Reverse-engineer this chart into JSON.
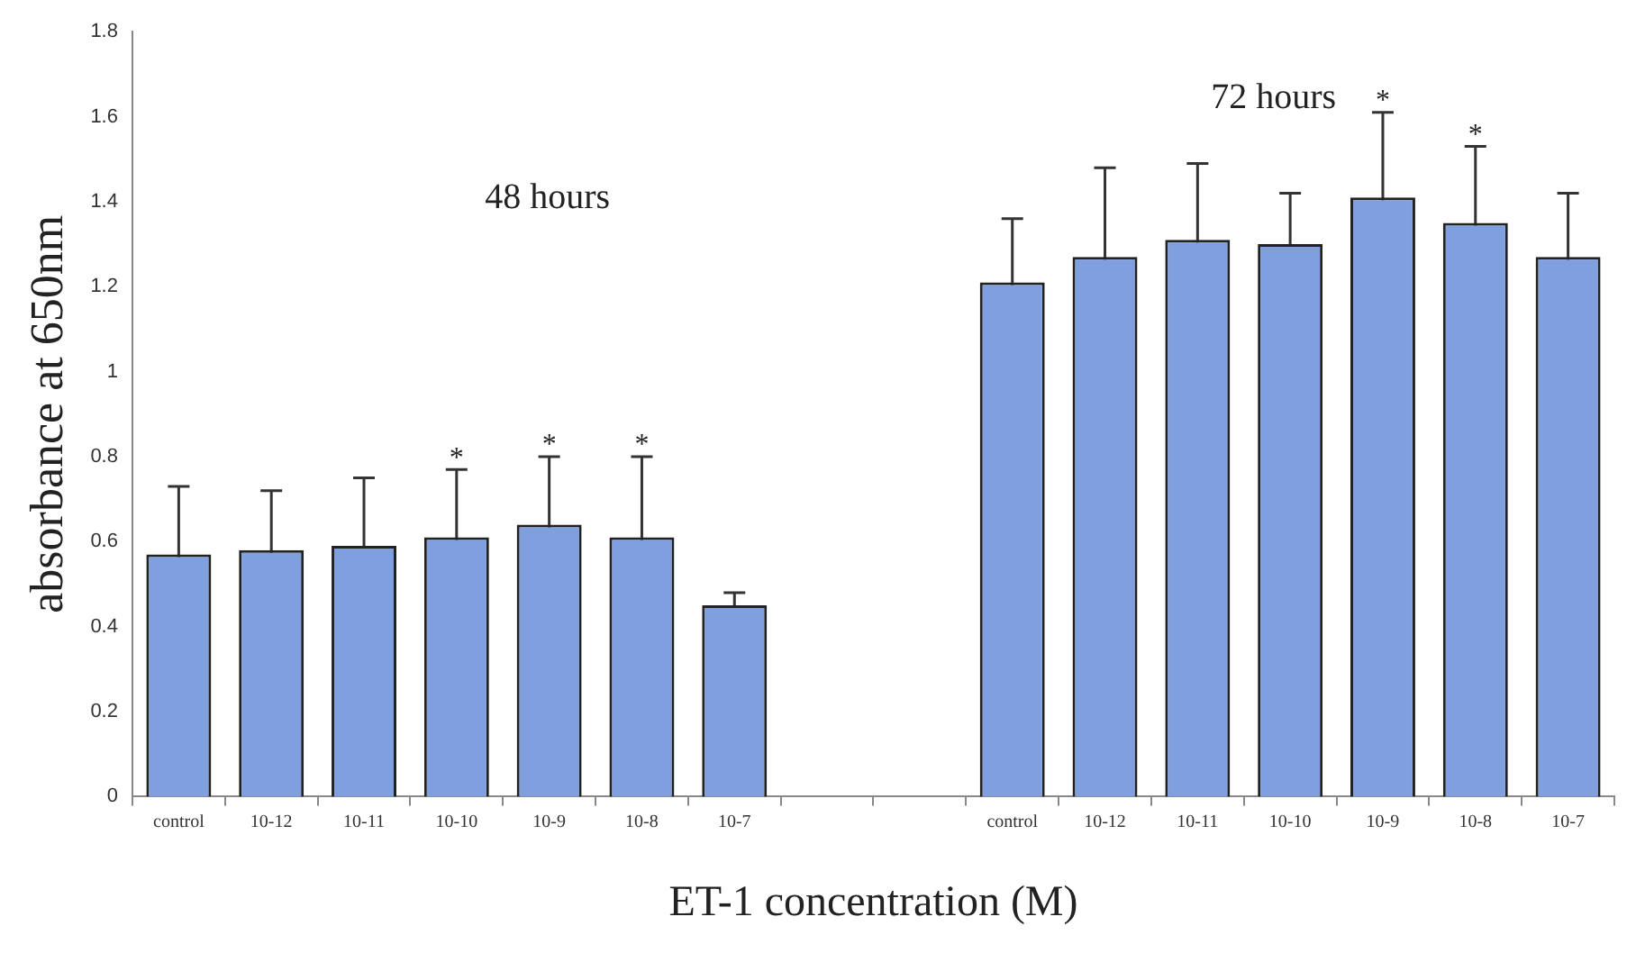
{
  "chart_data": {
    "type": "bar",
    "xlabel": "ET-1 concentration (M)",
    "ylabel": "absorbance at 650nm",
    "categories": [
      "control",
      "10-12",
      "10-11",
      "10-10",
      "10-9",
      "10-8",
      "10-7",
      null,
      null,
      "control",
      "10-12",
      "10-11",
      "10-10",
      "10-9",
      "10-8",
      "10-7"
    ],
    "series": [
      {
        "color": "#7f9fdf",
        "values": [
          0.57,
          0.58,
          0.59,
          0.61,
          0.64,
          0.61,
          0.45,
          null,
          null,
          1.21,
          1.27,
          1.31,
          1.3,
          1.41,
          1.35,
          1.27
        ],
        "errors": [
          0.16,
          0.14,
          0.16,
          0.16,
          0.16,
          0.19,
          0.03,
          null,
          null,
          0.15,
          0.21,
          0.18,
          0.12,
          0.2,
          0.18,
          0.15
        ],
        "value_labels": [
          null,
          null,
          null,
          "*",
          "*",
          "*",
          null,
          null,
          null,
          null,
          null,
          null,
          null,
          "*",
          "*",
          null
        ]
      }
    ],
    "ylim": [
      0,
      1.8
    ],
    "yticks": [
      0,
      0.2,
      0.4,
      0.6,
      0.8,
      1,
      1.2,
      1.4,
      1.6,
      1.8
    ],
    "annotations": [
      "48 hours",
      "72 hours"
    ],
    "grid": false,
    "legend": false
  }
}
